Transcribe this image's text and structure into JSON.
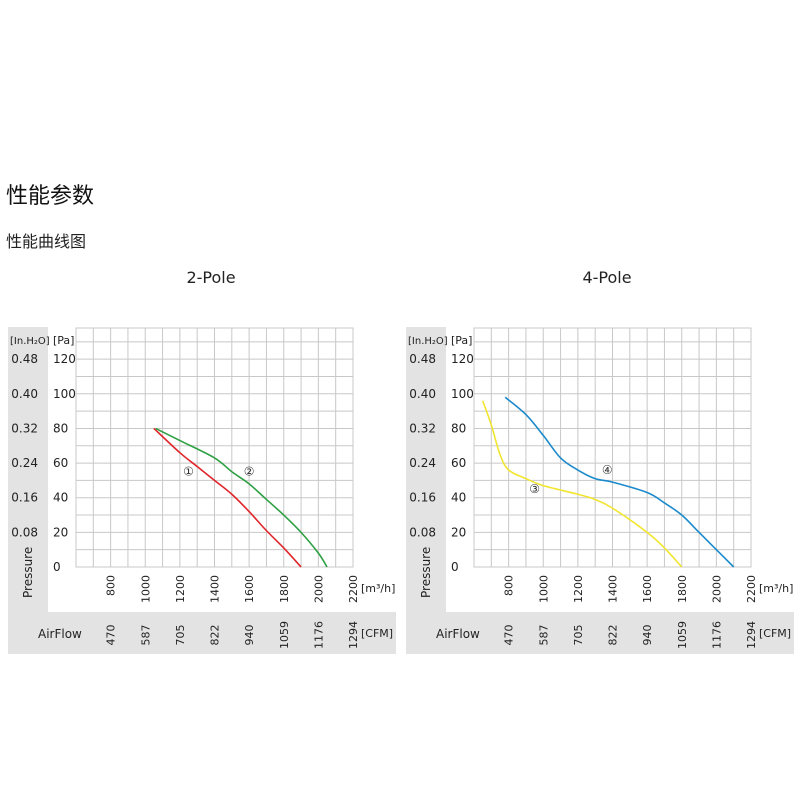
{
  "page": {
    "title": "性能参数",
    "subtitle": "性能曲线图"
  },
  "chart_data": [
    {
      "type": "line",
      "title": "2-Pole",
      "x_unit": "[m³/h]",
      "y_unit": "[Pa]",
      "y2_unit": "[In.H₂O]",
      "ylabel": "Pressure",
      "x2label": "AirFlow",
      "x2_unit": "[CFM]",
      "xlim": [
        600,
        2200
      ],
      "ylim": [
        0,
        138
      ],
      "grid": true,
      "x_ticks": [
        "800",
        "1000",
        "1200",
        "1400",
        "1600",
        "1800",
        "2000",
        "2200"
      ],
      "x2_ticks": [
        "470",
        "587",
        "705",
        "822",
        "940",
        "1059",
        "1176",
        "1294"
      ],
      "y_ticks": [
        "0",
        "20",
        "40",
        "60",
        "80",
        "100",
        "120"
      ],
      "y2_ticks": [
        "",
        "0.08",
        "0.16",
        "0.24",
        "0.32",
        "0.40",
        "0.48"
      ],
      "series": [
        {
          "name": "①",
          "color": "#e0262b",
          "label_at": [
            1250,
            55
          ],
          "x": [
            1050,
            1200,
            1300,
            1400,
            1500,
            1600,
            1700,
            1800,
            1900
          ],
          "y": [
            80,
            66,
            58,
            50,
            42,
            32,
            21,
            11,
            0
          ]
        },
        {
          "name": "②",
          "color": "#2ea043",
          "label_at": [
            1600,
            55
          ],
          "x": [
            1060,
            1200,
            1400,
            1500,
            1600,
            1700,
            1800,
            1900,
            2000,
            2050
          ],
          "y": [
            80,
            73,
            63,
            55,
            48,
            39,
            30,
            20,
            8,
            0
          ]
        }
      ]
    },
    {
      "type": "line",
      "title": "4-Pole",
      "x_unit": "[m³/h]",
      "y_unit": "[Pa]",
      "y2_unit": "[In.H₂O]",
      "ylabel": "Pressure",
      "x2label": "AirFlow",
      "x2_unit": "[CFM]",
      "xlim": [
        600,
        2200
      ],
      "ylim": [
        0,
        138
      ],
      "grid": true,
      "x_ticks": [
        "800",
        "1000",
        "1200",
        "1400",
        "1600",
        "1800",
        "2000",
        "2200"
      ],
      "x2_ticks": [
        "470",
        "587",
        "705",
        "822",
        "940",
        "1059",
        "1176",
        "1294"
      ],
      "y_ticks": [
        "0",
        "20",
        "40",
        "60",
        "80",
        "100",
        "120"
      ],
      "y2_ticks": [
        "",
        "0.08",
        "0.16",
        "0.24",
        "0.32",
        "0.40",
        "0.48"
      ],
      "series": [
        {
          "name": "③",
          "color": "#f2e52e",
          "label_at": [
            950,
            45
          ],
          "x": [
            650,
            700,
            750,
            800,
            900,
            1000,
            1200,
            1300,
            1400,
            1600,
            1700,
            1800
          ],
          "y": [
            96,
            82,
            65,
            56,
            51,
            47,
            42,
            39,
            34,
            20,
            11,
            0
          ]
        },
        {
          "name": "④",
          "color": "#1b8acb",
          "label_at": [
            1370,
            56
          ],
          "x": [
            780,
            900,
            1000,
            1100,
            1200,
            1300,
            1400,
            1600,
            1700,
            1800,
            1900,
            2000,
            2100
          ],
          "y": [
            98,
            88,
            76,
            63,
            56,
            51,
            49,
            43,
            37,
            30,
            20,
            10,
            0
          ]
        }
      ]
    }
  ]
}
